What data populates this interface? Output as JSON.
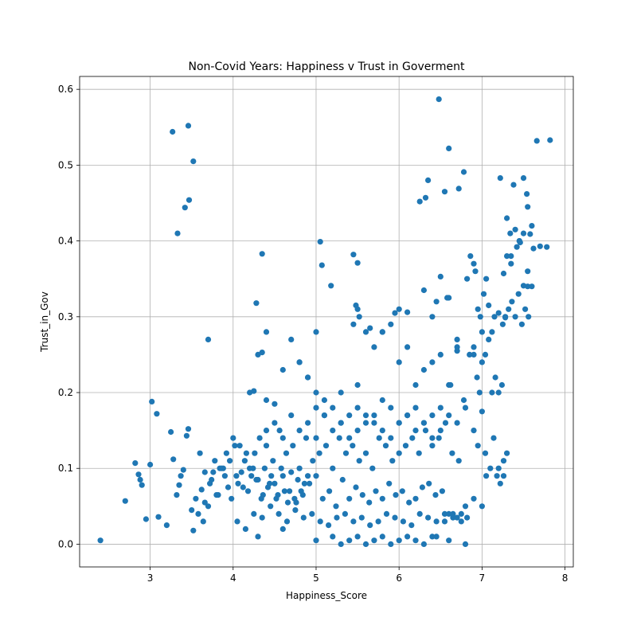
{
  "chart_data": {
    "type": "scatter",
    "title": "Non-Covid Years: Happiness v Trust in Goverment",
    "xlabel": "Happiness_Score",
    "ylabel": "Trust_in_Gov",
    "xlim": [
      2.15,
      8.1
    ],
    "ylim": [
      -0.03,
      0.617
    ],
    "xticks": [
      3,
      4,
      5,
      6,
      7,
      8
    ],
    "yticks": [
      0.0,
      0.1,
      0.2,
      0.3,
      0.4,
      0.5,
      0.6
    ],
    "xtick_labels": [
      "3",
      "4",
      "5",
      "6",
      "7",
      "8"
    ],
    "ytick_labels": [
      "0.0",
      "0.1",
      "0.2",
      "0.3",
      "0.4",
      "0.5",
      "0.6"
    ],
    "grid": true,
    "marker_color": "#1f77b4",
    "series": [
      {
        "x": [
          2.4,
          2.7,
          2.82,
          2.86,
          2.88,
          2.9,
          2.95,
          3.0,
          3.02,
          3.08,
          3.1,
          3.2,
          3.25,
          3.28,
          3.32,
          3.35,
          3.37,
          3.4,
          3.44,
          3.46,
          3.5,
          3.52,
          3.27,
          3.33,
          3.42,
          3.46,
          3.47,
          3.52,
          3.7,
          3.55,
          3.6,
          3.62,
          3.66,
          3.7,
          3.74,
          3.78,
          3.82,
          3.86,
          3.9,
          3.94,
          3.98,
          4.02,
          4.06,
          4.1,
          4.14,
          4.18,
          4.22,
          4.26,
          4.3,
          4.34,
          4.38,
          4.42,
          4.46,
          4.5,
          4.54,
          4.58,
          4.62,
          4.66,
          4.7,
          4.74,
          4.78,
          4.82,
          4.86,
          4.9,
          3.58,
          3.66,
          3.72,
          3.8,
          3.88,
          3.96,
          4.04,
          4.12,
          4.2,
          4.28,
          4.36,
          4.44,
          4.52,
          4.6,
          4.68,
          4.76,
          4.84,
          4.92,
          5.0,
          5.08,
          5.16,
          5.24,
          5.32,
          5.4,
          5.48,
          5.56,
          5.64,
          5.72,
          5.8,
          5.88,
          5.96,
          6.04,
          6.12,
          6.2,
          6.28,
          6.36,
          6.44,
          6.52,
          3.64,
          3.76,
          3.84,
          3.92,
          4.0,
          4.08,
          4.16,
          4.24,
          4.32,
          4.4,
          4.48,
          4.56,
          4.64,
          4.72,
          4.8,
          4.88,
          4.96,
          5.04,
          5.12,
          5.2,
          5.28,
          5.36,
          5.44,
          5.52,
          5.6,
          5.68,
          5.76,
          5.84,
          5.92,
          6.0,
          6.08,
          6.16,
          6.24,
          6.32,
          6.4,
          6.48,
          6.56,
          6.64,
          6.72,
          4.05,
          4.15,
          4.25,
          4.35,
          4.45,
          4.55,
          4.65,
          4.75,
          4.85,
          4.95,
          5.05,
          5.15,
          5.25,
          5.35,
          5.45,
          5.55,
          5.65,
          5.75,
          5.85,
          5.95,
          6.05,
          6.15,
          6.25,
          6.35,
          6.45,
          6.55,
          6.65,
          6.75,
          4.4,
          4.5,
          4.6,
          4.7,
          4.8,
          4.9,
          5.0,
          5.1,
          5.2,
          5.3,
          5.4,
          5.5,
          5.6,
          5.7,
          5.8,
          5.9,
          6.0,
          6.1,
          6.2,
          6.3,
          6.4,
          6.5,
          4.3,
          4.6,
          5.0,
          5.2,
          5.3,
          5.4,
          5.5,
          5.6,
          5.7,
          5.8,
          5.9,
          6.0,
          6.1,
          6.2,
          6.3,
          6.4,
          6.6,
          6.8,
          5.0,
          5.1,
          5.2,
          5.3,
          5.4,
          5.5,
          5.6,
          5.7,
          5.8,
          5.9,
          6.0,
          6.1,
          6.2,
          6.3,
          6.4,
          6.5,
          6.6,
          6.7,
          4.5,
          4.6,
          4.7,
          4.8,
          4.9,
          5.1,
          5.3,
          5.5,
          5.7,
          5.9,
          6.1,
          6.3,
          6.5,
          6.7,
          4.2,
          4.4,
          4.8,
          5.0,
          5.6,
          5.8,
          6.0,
          6.2,
          6.4,
          6.6,
          6.8,
          6.9,
          4.3,
          4.4,
          4.9,
          5.0,
          5.45,
          5.5,
          5.48,
          5.52,
          5.65,
          5.8,
          5.95,
          6.0,
          6.3,
          6.4,
          6.45,
          6.6,
          6.7,
          4.35,
          4.28,
          5.05,
          5.18,
          5.07,
          5.45,
          5.5,
          4.35,
          4.25,
          6.25,
          6.32,
          6.35,
          6.55,
          6.6,
          6.48,
          6.72,
          6.78,
          6.1,
          6.5,
          6.58,
          6.62,
          6.7,
          6.78,
          6.82,
          6.86,
          6.9,
          6.92,
          6.95,
          6.98,
          7.0,
          7.02,
          7.05,
          6.85,
          6.9,
          6.94,
          6.97,
          7.0,
          7.04,
          7.08,
          7.12,
          7.16,
          7.2,
          7.24,
          7.28,
          7.32,
          7.36,
          7.4,
          7.44,
          7.48,
          7.52,
          7.56,
          7.6,
          7.22,
          7.26,
          7.3,
          7.34,
          7.38,
          7.42,
          7.46,
          7.5,
          7.54,
          7.58,
          7.62,
          7.66,
          7.7,
          7.78,
          7.82,
          7.3,
          7.35,
          7.4,
          7.45,
          7.5,
          7.55,
          7.6,
          7.25,
          7.35,
          7.45,
          7.55,
          7.08,
          7.15,
          7.2,
          7.28,
          7.5,
          7.55,
          7.0,
          7.04,
          7.1,
          7.14,
          7.18,
          7.22,
          7.26,
          7.3,
          7.05,
          7.12,
          7.2,
          7.26,
          6.95,
          6.9,
          6.6,
          6.7,
          6.8,
          6.9,
          7.0,
          6.75,
          6.82,
          6.65,
          6.45,
          6.55
        ],
        "y": [
          0.005,
          0.057,
          0.107,
          0.092,
          0.085,
          0.078,
          0.033,
          0.105,
          0.188,
          0.172,
          0.036,
          0.025,
          0.148,
          0.112,
          0.065,
          0.078,
          0.09,
          0.098,
          0.143,
          0.152,
          0.045,
          0.018,
          0.544,
          0.41,
          0.444,
          0.552,
          0.454,
          0.505,
          0.27,
          0.06,
          0.12,
          0.072,
          0.095,
          0.05,
          0.085,
          0.11,
          0.065,
          0.1,
          0.09,
          0.075,
          0.06,
          0.13,
          0.08,
          0.095,
          0.11,
          0.07,
          0.09,
          0.12,
          0.085,
          0.06,
          0.1,
          0.075,
          0.09,
          0.08,
          0.065,
          0.1,
          0.07,
          0.055,
          0.095,
          0.06,
          0.085,
          0.07,
          0.08,
          0.09,
          0.04,
          0.055,
          0.08,
          0.065,
          0.1,
          0.11,
          0.09,
          0.075,
          0.1,
          0.085,
          0.065,
          0.08,
          0.06,
          0.09,
          0.07,
          0.055,
          0.065,
          0.08,
          0.09,
          0.06,
          0.07,
          0.05,
          0.085,
          0.06,
          0.075,
          0.065,
          0.055,
          0.07,
          0.06,
          0.08,
          0.065,
          0.07,
          0.055,
          0.06,
          0.075,
          0.08,
          0.065,
          0.07,
          0.03,
          0.095,
          0.1,
          0.12,
          0.14,
          0.13,
          0.12,
          0.1,
          0.14,
          0.13,
          0.11,
          0.15,
          0.12,
          0.13,
          0.1,
          0.14,
          0.11,
          0.12,
          0.13,
          0.1,
          0.14,
          0.12,
          0.13,
          0.11,
          0.12,
          0.1,
          0.14,
          0.13,
          0.11,
          0.12,
          0.13,
          0.14,
          0.12,
          0.15,
          0.13,
          0.14,
          0.16,
          0.12,
          0.11,
          0.03,
          0.02,
          0.04,
          0.035,
          0.05,
          0.04,
          0.03,
          0.045,
          0.035,
          0.04,
          0.03,
          0.025,
          0.035,
          0.04,
          0.03,
          0.035,
          0.025,
          0.03,
          0.04,
          0.035,
          0.03,
          0.025,
          0.04,
          0.035,
          0.03,
          0.04,
          0.035,
          0.03,
          0.15,
          0.16,
          0.14,
          0.17,
          0.15,
          0.16,
          0.14,
          0.17,
          0.15,
          0.16,
          0.14,
          0.15,
          0.17,
          0.16,
          0.15,
          0.14,
          0.16,
          0.17,
          0.15,
          0.16,
          0.14,
          0.15,
          0.01,
          0.02,
          0.005,
          0.01,
          0.0,
          0.005,
          0.01,
          0.0,
          0.005,
          0.01,
          0.0,
          0.005,
          0.01,
          0.005,
          0.0,
          0.01,
          0.005,
          0.0,
          0.18,
          0.17,
          0.18,
          0.16,
          0.17,
          0.18,
          0.16,
          0.17,
          0.19,
          0.18,
          0.16,
          0.17,
          0.18,
          0.16,
          0.17,
          0.18,
          0.17,
          0.16,
          0.185,
          0.23,
          0.27,
          0.24,
          0.22,
          0.19,
          0.2,
          0.21,
          0.26,
          0.29,
          0.26,
          0.23,
          0.25,
          0.27,
          0.2,
          0.19,
          0.24,
          0.2,
          0.28,
          0.28,
          0.24,
          0.21,
          0.24,
          0.21,
          0.18,
          0.25,
          0.25,
          0.28,
          0.22,
          0.28,
          0.29,
          0.31,
          0.315,
          0.3,
          0.285,
          0.28,
          0.305,
          0.31,
          0.335,
          0.3,
          0.32,
          0.325,
          0.26,
          0.383,
          0.318,
          0.399,
          0.341,
          0.368,
          0.382,
          0.371,
          0.253,
          0.202,
          0.452,
          0.457,
          0.48,
          0.465,
          0.522,
          0.587,
          0.469,
          0.491,
          0.306,
          0.353,
          0.325,
          0.21,
          0.255,
          0.19,
          0.35,
          0.38,
          0.37,
          0.36,
          0.31,
          0.3,
          0.28,
          0.33,
          0.35,
          0.25,
          0.26,
          0.22,
          0.2,
          0.24,
          0.25,
          0.27,
          0.28,
          0.22,
          0.2,
          0.21,
          0.3,
          0.31,
          0.32,
          0.3,
          0.33,
          0.29,
          0.31,
          0.3,
          0.34,
          0.483,
          0.357,
          0.43,
          0.41,
          0.474,
          0.392,
          0.398,
          0.483,
          0.462,
          0.409,
          0.39,
          0.532,
          0.393,
          0.392,
          0.533,
          0.38,
          0.37,
          0.415,
          0.4,
          0.41,
          0.445,
          0.42,
          0.29,
          0.38,
          0.4,
          0.36,
          0.315,
          0.3,
          0.305,
          0.299,
          0.341,
          0.34,
          0.175,
          0.12,
          0.1,
          0.14,
          0.09,
          0.08,
          0.11,
          0.12,
          0.09,
          0.2,
          0.1,
          0.09,
          0.13,
          0.15,
          0.04,
          0.035,
          0.05,
          0.06,
          0.05,
          0.04,
          0.035,
          0.04,
          0.01,
          0.03
        ]
      }
    ]
  }
}
